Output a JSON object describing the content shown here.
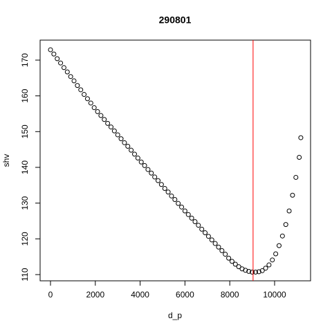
{
  "chart_data": {
    "type": "scatter",
    "title": "290801",
    "x_label": "d_p",
    "y_label": "shv",
    "x": [
      0,
      150,
      300,
      450,
      600,
      750,
      900,
      1050,
      1200,
      1350,
      1500,
      1650,
      1800,
      1950,
      2100,
      2250,
      2400,
      2550,
      2700,
      2850,
      3000,
      3150,
      3300,
      3450,
      3600,
      3750,
      3900,
      4050,
      4200,
      4350,
      4500,
      4650,
      4800,
      4950,
      5100,
      5250,
      5400,
      5550,
      5700,
      5850,
      6000,
      6150,
      6300,
      6450,
      6600,
      6750,
      6900,
      7050,
      7200,
      7350,
      7500,
      7650,
      7800,
      7950,
      8100,
      8250,
      8400,
      8550,
      8700,
      8850,
      9000,
      9150,
      9300,
      9450,
      9600,
      9750,
      9900,
      10050,
      10200,
      10350,
      10500,
      10650,
      10800,
      10950,
      11100,
      11170
    ],
    "y": [
      172.9,
      171.7,
      170.4,
      169.2,
      167.9,
      166.7,
      165.4,
      164.2,
      162.9,
      161.7,
      160.4,
      159.2,
      158.0,
      156.7,
      155.6,
      154.5,
      153.4,
      152.3,
      151.3,
      150.2,
      149.1,
      148.0,
      146.9,
      145.9,
      144.8,
      143.7,
      142.6,
      141.5,
      140.5,
      139.4,
      138.4,
      137.3,
      136.3,
      135.2,
      134.1,
      133.1,
      132.0,
      131.0,
      129.9,
      128.9,
      127.8,
      126.8,
      125.8,
      124.8,
      123.8,
      122.7,
      121.7,
      120.7,
      119.7,
      118.7,
      117.7,
      116.7,
      115.7,
      114.6,
      113.7,
      112.9,
      112.2,
      111.6,
      111.2,
      110.9,
      110.7,
      110.7,
      110.8,
      111.1,
      111.8,
      112.7,
      114.1,
      115.8,
      118.1,
      120.8,
      124.0,
      127.8,
      132.2,
      137.2,
      142.8,
      148.3
    ],
    "color": "#000000",
    "vline": 9040,
    "vline_color": "#ff0000",
    "xlim": [
      -463,
      11605
    ],
    "ylim": [
      108.26,
      175.6
    ],
    "xticks": [
      0,
      2000,
      4000,
      6000,
      8000,
      10000
    ],
    "yticks": [
      110,
      120,
      130,
      140,
      150,
      160,
      170
    ]
  }
}
